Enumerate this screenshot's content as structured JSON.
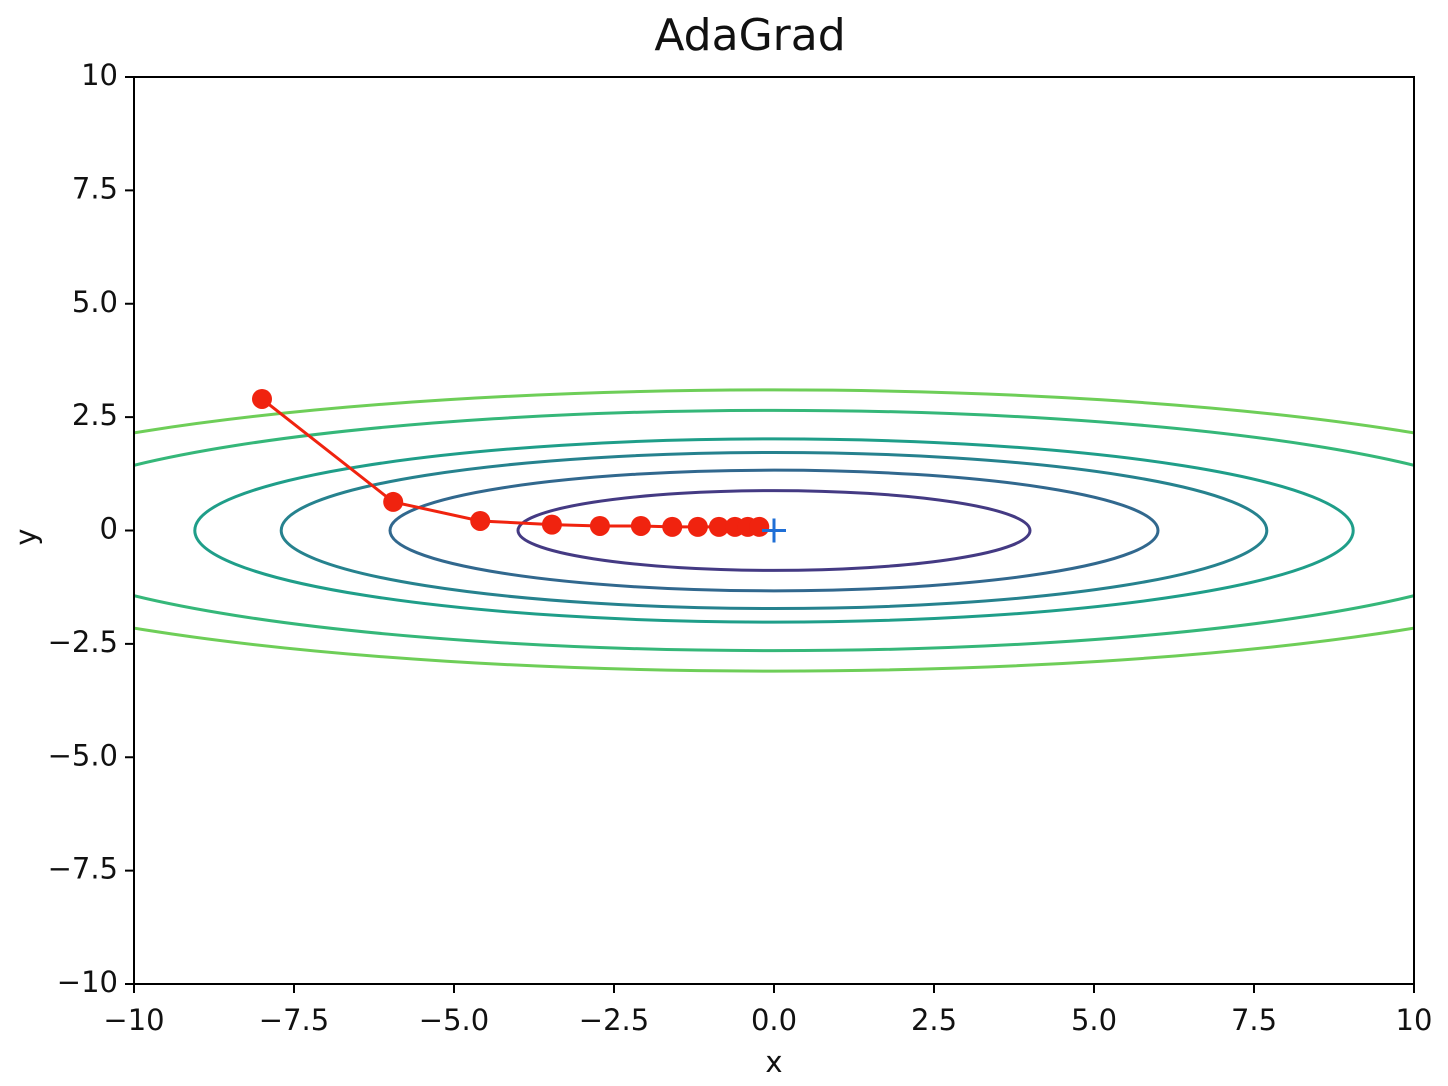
{
  "chart_data": {
    "type": "contour-path",
    "title": "AdaGrad",
    "x_label": "x",
    "y_label": "y",
    "xlim": [
      -10,
      10
    ],
    "ylim": [
      -10,
      10
    ],
    "xticks": [
      {
        "value": -10,
        "label": "−10"
      },
      {
        "value": -7.5,
        "label": "−7.5"
      },
      {
        "value": -5,
        "label": "−5.0"
      },
      {
        "value": -2.5,
        "label": "−2.5"
      },
      {
        "value": 0,
        "label": "0.0"
      },
      2.5,
      {
        "value": 5,
        "label": "5.0"
      },
      7.5,
      10
    ],
    "yticks": [
      {
        "value": -10,
        "label": "−10"
      },
      {
        "value": -7.5,
        "label": "−7.5"
      },
      {
        "value": -5,
        "label": "−5.0"
      },
      {
        "value": -2.5,
        "label": "−2.5"
      },
      0,
      2.5,
      {
        "value": 5,
        "label": "5.0"
      },
      7.5,
      10
    ],
    "contours": [
      {
        "rx": 13.9,
        "ry": 3.1,
        "color": "#6ece58"
      },
      {
        "rx": 11.9,
        "ry": 2.65,
        "color": "#35b779"
      },
      {
        "rx": 9.05,
        "ry": 2.02,
        "color": "#1f9e89"
      },
      {
        "rx": 7.7,
        "ry": 1.72,
        "color": "#26828e"
      },
      {
        "rx": 6,
        "ry": 1.33,
        "color": "#31688e"
      },
      {
        "rx": 4,
        "ry": 0.88,
        "color": "#443a83"
      }
    ],
    "series": [
      {
        "color": "#f0230f",
        "x": [
          -8.0,
          -5.95,
          -4.59,
          -3.47,
          -2.72,
          -2.08,
          -1.59,
          -1.19,
          -0.86,
          -0.61,
          -0.41,
          -0.23
        ],
        "values": [
          2.9,
          0.63,
          0.21,
          0.13,
          0.1,
          0.1,
          0.08,
          0.08,
          0.08,
          0.08,
          0.08,
          0.08
        ]
      }
    ],
    "minimum": {
      "x": 0,
      "y": 0,
      "color": "#1f6fd6"
    }
  }
}
